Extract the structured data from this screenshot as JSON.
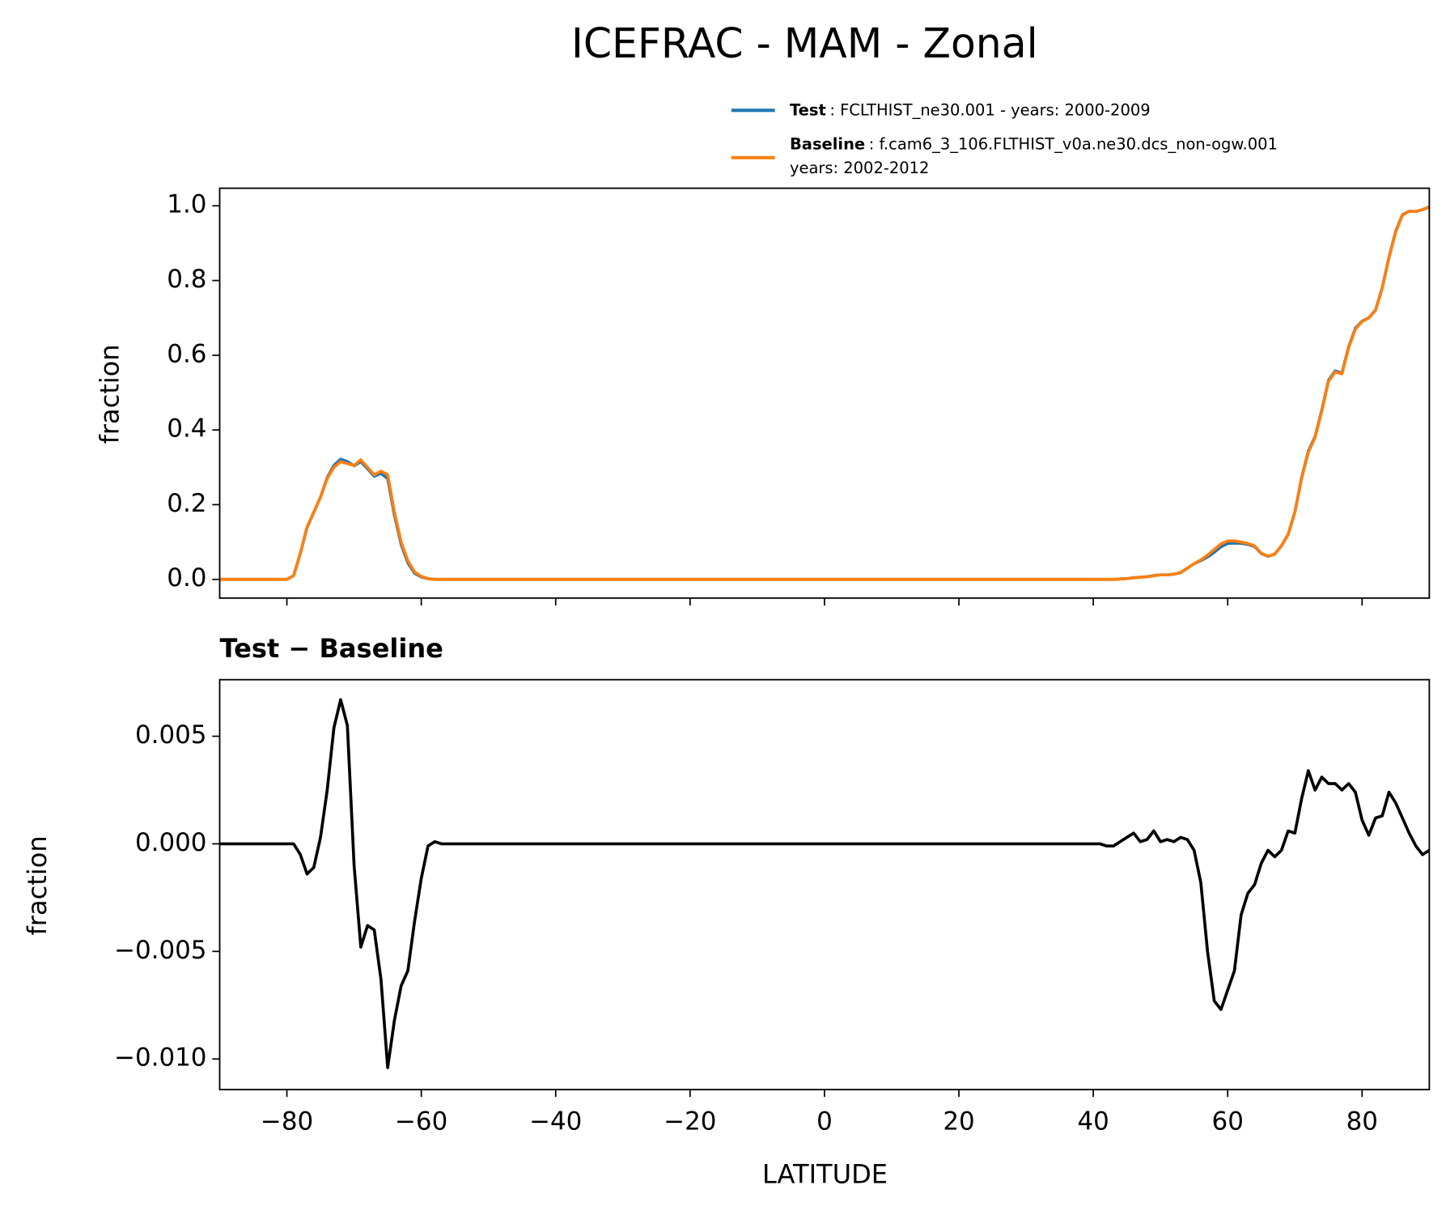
{
  "chart_data": [
    {
      "type": "line",
      "title": "ICEFRAC - MAM - Zonal",
      "ylabel": "fraction",
      "x": [
        -90,
        -80,
        -79,
        -78,
        -77,
        -76,
        -75,
        -74,
        -73,
        -72,
        -71,
        -70,
        -69,
        -68,
        -67,
        -66,
        -65,
        -64,
        -63,
        -62,
        -61,
        -60,
        -59,
        -58,
        -57,
        -50,
        -40,
        -30,
        -20,
        -10,
        0,
        10,
        20,
        30,
        40,
        41,
        42,
        43,
        44,
        45,
        46,
        47,
        48,
        49,
        50,
        51,
        52,
        53,
        54,
        55,
        56,
        57,
        58,
        59,
        60,
        61,
        62,
        63,
        64,
        65,
        66,
        67,
        68,
        69,
        70,
        71,
        72,
        73,
        74,
        75,
        76,
        77,
        78,
        79,
        80,
        81,
        82,
        83,
        84,
        85,
        86,
        87,
        88,
        89,
        90
      ],
      "series": [
        {
          "name": "Test",
          "label_lines": [
            ": FCLTHIST_ne30.001 - years: 2000-2009"
          ],
          "color": "#1f77b4",
          "values": [
            0,
            0,
            0.01,
            0.0695,
            0.1386,
            0.1789,
            0.2203,
            0.2725,
            0.3054,
            0.3217,
            0.3155,
            0.304,
            0.3152,
            0.2962,
            0.276,
            0.2837,
            0.2696,
            0.1718,
            0.0934,
            0.0441,
            0.0164,
            0.0064,
            0.0019,
            0.0001,
            0,
            0,
            0,
            0,
            0,
            0,
            0,
            0,
            0,
            0,
            0,
            0,
            -0.0001,
            -0.0001,
            0.0011,
            0.0023,
            0.0045,
            0.0061,
            0.0072,
            0.0106,
            0.0121,
            0.0122,
            0.0141,
            0.0183,
            0.0302,
            0.0417,
            0.0502,
            0.06,
            0.0727,
            0.0873,
            0.0962,
            0.0971,
            0.0967,
            0.0937,
            0.0881,
            0.0691,
            0.0617,
            0.0674,
            0.0897,
            0.1206,
            0.1805,
            0.2721,
            0.3434,
            0.3825,
            0.4531,
            0.5328,
            0.5578,
            0.5525,
            0.6228,
            0.6724,
            0.6911,
            0.7004,
            0.7212,
            0.7813,
            0.8624,
            0.9319,
            0.9762,
            0.9855,
            0.9849,
            0.9895,
            0.9967
          ]
        },
        {
          "name": "Baseline",
          "label_lines": [
            ": f.cam6_3_106.FLTHIST_v0a.ne30.dcs_non-ogw.001",
            "years: 2002-2012"
          ],
          "color": "#ff7f0e",
          "values": [
            0,
            0,
            0.01,
            0.07,
            0.14,
            0.18,
            0.22,
            0.27,
            0.3,
            0.315,
            0.31,
            0.305,
            0.32,
            0.3,
            0.28,
            0.29,
            0.28,
            0.18,
            0.1,
            0.05,
            0.02,
            0.008,
            0.002,
            0,
            0,
            0,
            0,
            0,
            0,
            0,
            0,
            0,
            0,
            0,
            0,
            0,
            0,
            0,
            0.001,
            0.002,
            0.004,
            0.006,
            0.007,
            0.01,
            0.012,
            0.012,
            0.014,
            0.018,
            0.03,
            0.042,
            0.052,
            0.065,
            0.08,
            0.095,
            0.103,
            0.103,
            0.1,
            0.096,
            0.09,
            0.07,
            0.062,
            0.068,
            0.09,
            0.12,
            0.18,
            0.27,
            0.34,
            0.38,
            0.45,
            0.53,
            0.555,
            0.55,
            0.62,
            0.67,
            0.69,
            0.7,
            0.72,
            0.78,
            0.86,
            0.93,
            0.975,
            0.985,
            0.985,
            0.99,
            0.997
          ]
        }
      ],
      "xlim": [
        -90,
        90
      ],
      "ylim": [
        -0.05,
        1.047
      ],
      "yticks": [
        {
          "value": 0,
          "label": "0.0"
        },
        {
          "value": 0.2,
          "label": "0.2"
        },
        {
          "value": 0.4,
          "label": "0.4"
        },
        {
          "value": 0.6,
          "label": "0.6"
        },
        {
          "value": 0.8,
          "label": "0.8"
        },
        {
          "value": 1,
          "label": "1.0"
        }
      ]
    },
    {
      "type": "line",
      "title": "Test − Baseline",
      "ylabel": "fraction",
      "xlabel": "LATITUDE",
      "x": [
        -90,
        -80,
        -79,
        -78,
        -77,
        -76,
        -75,
        -74,
        -73,
        -72,
        -71,
        -70,
        -69,
        -68,
        -67,
        -66,
        -65,
        -64,
        -63,
        -62,
        -61,
        -60,
        -59,
        -58,
        -57,
        -50,
        -40,
        -30,
        -20,
        -10,
        0,
        10,
        20,
        30,
        40,
        41,
        42,
        43,
        44,
        45,
        46,
        47,
        48,
        49,
        50,
        51,
        52,
        53,
        54,
        55,
        56,
        57,
        58,
        59,
        60,
        61,
        62,
        63,
        64,
        65,
        66,
        67,
        68,
        69,
        70,
        71,
        72,
        73,
        74,
        75,
        76,
        77,
        78,
        79,
        80,
        81,
        82,
        83,
        84,
        85,
        86,
        87,
        88,
        89,
        90
      ],
      "series": [
        {
          "color": "#000000",
          "values": [
            0,
            0,
            0,
            -0.0005,
            -0.0014,
            -0.0011,
            0.0003,
            0.0025,
            0.0054,
            0.0067,
            0.0055,
            -0.001,
            -0.0048,
            -0.0038,
            -0.004,
            -0.0063,
            -0.0104,
            -0.0082,
            -0.0066,
            -0.0059,
            -0.0036,
            -0.0016,
            -0.0001,
            0.0001,
            0,
            0,
            0,
            0,
            0,
            0,
            0,
            0,
            0,
            0,
            0,
            0,
            -0.0001,
            -0.0001,
            0.0001,
            0.0003,
            0.0005,
            0.0001,
            0.0002,
            0.0006,
            0.0001,
            0.0002,
            0.0001,
            0.0003,
            0.0002,
            -0.0003,
            -0.0018,
            -0.005,
            -0.0073,
            -0.0077,
            -0.0068,
            -0.0059,
            -0.0033,
            -0.0023,
            -0.0019,
            -0.0009,
            -0.0003,
            -0.0006,
            -0.0003,
            0.0006,
            0.0005,
            0.0021,
            0.0034,
            0.0025,
            0.0031,
            0.0028,
            0.0028,
            0.0025,
            0.0028,
            0.0024,
            0.0011,
            0.0004,
            0.0012,
            0.0013,
            0.0024,
            0.0019,
            0.0012,
            0.0005,
            -0.0001,
            -0.0005,
            -0.0003
          ]
        }
      ],
      "xlim": [
        -90,
        90
      ],
      "ylim": [
        -0.01142,
        0.00763
      ],
      "xticks": [
        {
          "value": -80,
          "label": "−80"
        },
        {
          "value": -60,
          "label": "−60"
        },
        {
          "value": -40,
          "label": "−40"
        },
        {
          "value": -20,
          "label": "−20"
        },
        0,
        20,
        40,
        60,
        80
      ],
      "yticks": [
        {
          "value": -0.01,
          "label": "−0.010"
        },
        {
          "value": -0.005,
          "label": "−0.005"
        },
        {
          "value": 0,
          "label": "0.000"
        },
        {
          "value": 0.005,
          "label": "0.005"
        }
      ]
    }
  ]
}
